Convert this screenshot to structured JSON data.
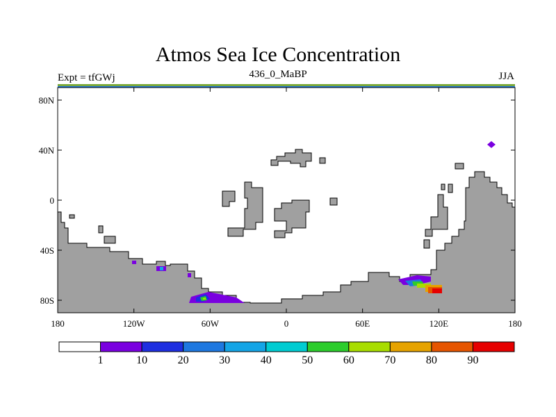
{
  "title": "Atmos Sea Ice Concentration",
  "left_label": "Expt = tfGWj",
  "center_label": "436_0_MaBP",
  "right_label": "JJA",
  "map": {
    "lon_range": [
      -180,
      180
    ],
    "lat_range": [
      -90,
      90
    ],
    "y_ticks": [
      {
        "lat": 80,
        "label": "80N"
      },
      {
        "lat": 40,
        "label": "40N"
      },
      {
        "lat": 0,
        "label": "0"
      },
      {
        "lat": -40,
        "label": "40S"
      },
      {
        "lat": -80,
        "label": "80S"
      }
    ],
    "x_ticks": [
      {
        "lon": -180,
        "label": "180"
      },
      {
        "lon": -120,
        "label": "120W"
      },
      {
        "lon": -60,
        "label": "60W"
      },
      {
        "lon": 0,
        "label": "0"
      },
      {
        "lon": 60,
        "label": "60E"
      },
      {
        "lon": 120,
        "label": "120E"
      },
      {
        "lon": 180,
        "label": "180"
      }
    ],
    "land_color": "#a0a0a0"
  },
  "colorbar": {
    "colors": [
      "#ffffff",
      "#7a00e0",
      "#1e2fe0",
      "#1e78e0",
      "#14a5e6",
      "#00ccd2",
      "#2ccd2c",
      "#a8dd00",
      "#e6a300",
      "#e65500",
      "#e60000"
    ],
    "labels": [
      "1",
      "10",
      "20",
      "30",
      "40",
      "50",
      "60",
      "70",
      "80",
      "90"
    ]
  }
}
